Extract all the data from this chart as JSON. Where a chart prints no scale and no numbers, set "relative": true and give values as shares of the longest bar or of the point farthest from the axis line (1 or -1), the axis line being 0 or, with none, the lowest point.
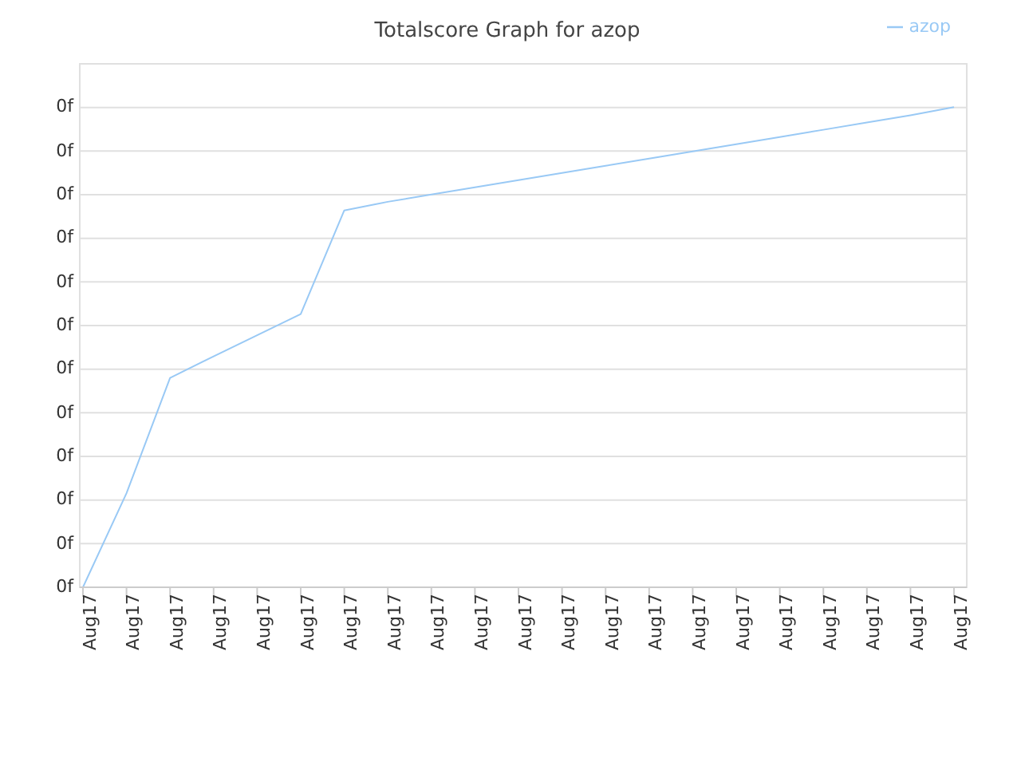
{
  "chart_data": {
    "type": "line",
    "title": "Totalscore Graph for azop",
    "relative": true,
    "categories": [
      "Aug17",
      "Aug17",
      "Aug17",
      "Aug17",
      "Aug17",
      "Aug17",
      "Aug17",
      "Aug17",
      "Aug17",
      "Aug17",
      "Aug17",
      "Aug17",
      "Aug17",
      "Aug17",
      "Aug17",
      "Aug17",
      "Aug17",
      "Aug17",
      "Aug17",
      "Aug17",
      "Aug17"
    ],
    "series": [
      {
        "name": "azop",
        "color": "#99c9f5",
        "values": [
          0,
          0.196,
          0.436,
          0.481,
          0.525,
          0.569,
          0.785,
          0.803,
          0.818,
          0.833,
          0.848,
          0.863,
          0.878,
          0.893,
          0.908,
          0.923,
          0.938,
          0.953,
          0.968,
          0.983,
          1
        ]
      }
    ],
    "annotations": [
      "0f",
      "0f",
      "0f",
      "0f",
      "0f",
      "0f",
      "0f",
      "0f",
      "0f",
      "0f",
      "0f",
      "0f"
    ],
    "grid": "y",
    "legend": "top right",
    "marker": "none",
    "line_style": "solid"
  }
}
